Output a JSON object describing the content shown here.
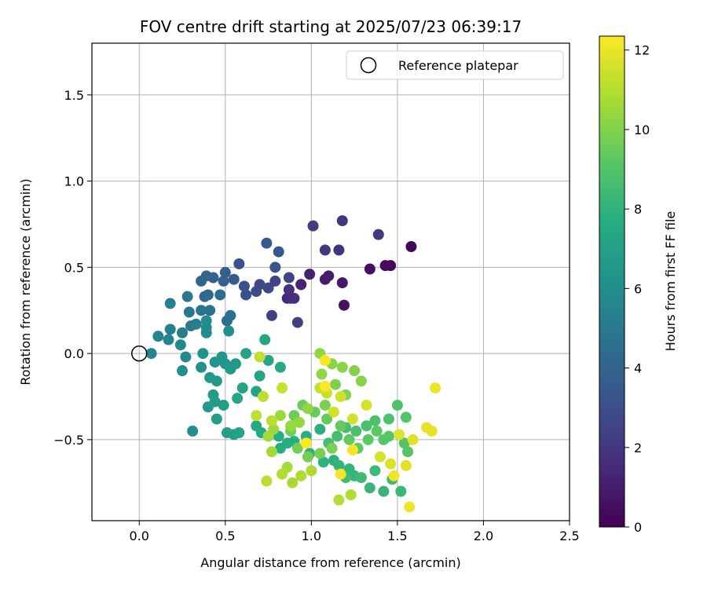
{
  "chart_data": {
    "type": "scatter",
    "title": "FOV centre drift starting at 2025/07/23 06:39:17",
    "xlabel": "Angular distance from reference (arcmin)",
    "ylabel": "Rotation from reference (arcmin)",
    "xlim": [
      -0.275,
      2.5
    ],
    "ylim": [
      -0.97,
      1.8
    ],
    "xticks": [
      0.0,
      0.5,
      1.0,
      1.5,
      2.0,
      2.5
    ],
    "xtick_labels": [
      "0.0",
      "0.5",
      "1.0",
      "1.5",
      "2.0",
      "2.5"
    ],
    "yticks": [
      -0.5,
      0.0,
      0.5,
      1.0,
      1.5
    ],
    "ytick_labels": [
      "−0.5",
      "0.0",
      "0.5",
      "1.0",
      "1.5"
    ],
    "grid": true,
    "legend": {
      "placement": "top-right",
      "entries": [
        "Reference platepar"
      ]
    },
    "reference_point": {
      "x": 0.0,
      "y": 0.0,
      "marker": "open-circle"
    },
    "colorbar": {
      "label": "Hours from first FF file",
      "colormap": "viridis",
      "range": [
        0,
        12.35
      ],
      "ticks": [
        0,
        2,
        4,
        6,
        8,
        10,
        12
      ],
      "tick_labels": [
        "0",
        "2",
        "4",
        "6",
        "8",
        "10",
        "12"
      ]
    },
    "points": [
      {
        "x": 1.58,
        "y": 0.62,
        "t": 0.2
      },
      {
        "x": 1.46,
        "y": 0.51,
        "t": 0.3
      },
      {
        "x": 1.43,
        "y": 0.51,
        "t": 0.4
      },
      {
        "x": 1.34,
        "y": 0.49,
        "t": 0.5
      },
      {
        "x": 1.19,
        "y": 0.28,
        "t": 0.6
      },
      {
        "x": 1.18,
        "y": 0.41,
        "t": 0.8
      },
      {
        "x": 1.08,
        "y": 0.43,
        "t": 0.9
      },
      {
        "x": 1.1,
        "y": 0.45,
        "t": 1.0
      },
      {
        "x": 0.99,
        "y": 0.46,
        "t": 1.1
      },
      {
        "x": 0.94,
        "y": 0.4,
        "t": 1.2
      },
      {
        "x": 0.94,
        "y": 0.4,
        "t": 1.3
      },
      {
        "x": 0.86,
        "y": 0.32,
        "t": 1.4
      },
      {
        "x": 0.88,
        "y": 0.32,
        "t": 1.5
      },
      {
        "x": 0.9,
        "y": 0.32,
        "t": 1.6
      },
      {
        "x": 0.87,
        "y": 0.37,
        "t": 1.7
      },
      {
        "x": 1.16,
        "y": 0.6,
        "t": 1.8
      },
      {
        "x": 1.08,
        "y": 0.6,
        "t": 1.9
      },
      {
        "x": 1.18,
        "y": 0.77,
        "t": 2.0
      },
      {
        "x": 1.39,
        "y": 0.69,
        "t": 2.1
      },
      {
        "x": 1.01,
        "y": 0.74,
        "t": 2.2
      },
      {
        "x": 0.92,
        "y": 0.18,
        "t": 2.3
      },
      {
        "x": 0.77,
        "y": 0.22,
        "t": 2.4
      },
      {
        "x": 0.87,
        "y": 0.44,
        "t": 2.5
      },
      {
        "x": 0.79,
        "y": 0.42,
        "t": 2.6
      },
      {
        "x": 0.75,
        "y": 0.38,
        "t": 2.7
      },
      {
        "x": 0.7,
        "y": 0.4,
        "t": 2.8
      },
      {
        "x": 0.68,
        "y": 0.36,
        "t": 2.9
      },
      {
        "x": 0.62,
        "y": 0.34,
        "t": 3.0
      },
      {
        "x": 0.61,
        "y": 0.39,
        "t": 3.1
      },
      {
        "x": 0.58,
        "y": 0.52,
        "t": 3.2
      },
      {
        "x": 0.79,
        "y": 0.5,
        "t": 3.3
      },
      {
        "x": 0.81,
        "y": 0.59,
        "t": 3.4
      },
      {
        "x": 0.74,
        "y": 0.64,
        "t": 3.5
      },
      {
        "x": 0.55,
        "y": 0.43,
        "t": 3.6
      },
      {
        "x": 0.5,
        "y": 0.47,
        "t": 3.7
      },
      {
        "x": 0.49,
        "y": 0.42,
        "t": 3.8
      },
      {
        "x": 0.43,
        "y": 0.44,
        "t": 3.9
      },
      {
        "x": 0.39,
        "y": 0.45,
        "t": 4.0
      },
      {
        "x": 0.36,
        "y": 0.42,
        "t": 4.1
      },
      {
        "x": 0.4,
        "y": 0.34,
        "t": 4.2
      },
      {
        "x": 0.38,
        "y": 0.33,
        "t": 4.3
      },
      {
        "x": 0.47,
        "y": 0.34,
        "t": 4.4
      },
      {
        "x": 0.51,
        "y": 0.19,
        "t": 4.5
      },
      {
        "x": 0.53,
        "y": 0.22,
        "t": 4.6
      },
      {
        "x": 0.41,
        "y": 0.25,
        "t": 4.7
      },
      {
        "x": 0.36,
        "y": 0.25,
        "t": 4.8
      },
      {
        "x": 0.29,
        "y": 0.24,
        "t": 4.9
      },
      {
        "x": 0.28,
        "y": 0.33,
        "t": 4.9
      },
      {
        "x": 0.3,
        "y": 0.16,
        "t": 5.0
      },
      {
        "x": 0.33,
        "y": 0.17,
        "t": 5.1
      },
      {
        "x": 0.25,
        "y": 0.12,
        "t": 5.2
      },
      {
        "x": 0.18,
        "y": 0.29,
        "t": 5.3
      },
      {
        "x": 0.18,
        "y": 0.14,
        "t": 5.4
      },
      {
        "x": 0.17,
        "y": 0.08,
        "t": 5.5
      },
      {
        "x": 0.11,
        "y": 0.1,
        "t": 5.6
      },
      {
        "x": 0.07,
        "y": 0.0,
        "t": 5.7
      },
      {
        "x": 0.24,
        "y": 0.05,
        "t": 5.8
      },
      {
        "x": 0.27,
        "y": -0.02,
        "t": 5.9
      },
      {
        "x": 0.39,
        "y": 0.19,
        "t": 5.95
      },
      {
        "x": 0.39,
        "y": 0.15,
        "t": 6.0
      },
      {
        "x": 0.39,
        "y": 0.12,
        "t": 6.05
      },
      {
        "x": 0.52,
        "y": 0.13,
        "t": 6.1
      },
      {
        "x": 0.31,
        "y": -0.45,
        "t": 6.15
      },
      {
        "x": 0.25,
        "y": -0.1,
        "t": 6.2
      },
      {
        "x": 0.36,
        "y": -0.08,
        "t": 6.25
      },
      {
        "x": 0.37,
        "y": 0.0,
        "t": 6.3
      },
      {
        "x": 0.44,
        "y": -0.05,
        "t": 6.35
      },
      {
        "x": 0.48,
        "y": -0.02,
        "t": 6.4
      },
      {
        "x": 0.5,
        "y": -0.06,
        "t": 6.45
      },
      {
        "x": 0.53,
        "y": -0.09,
        "t": 6.5
      },
      {
        "x": 0.56,
        "y": -0.06,
        "t": 6.55
      },
      {
        "x": 0.41,
        "y": -0.14,
        "t": 6.6
      },
      {
        "x": 0.45,
        "y": -0.16,
        "t": 6.65
      },
      {
        "x": 0.43,
        "y": -0.24,
        "t": 6.7
      },
      {
        "x": 0.4,
        "y": -0.31,
        "t": 6.75
      },
      {
        "x": 0.44,
        "y": -0.28,
        "t": 6.8
      },
      {
        "x": 0.49,
        "y": -0.3,
        "t": 6.85
      },
      {
        "x": 0.45,
        "y": -0.38,
        "t": 6.9
      },
      {
        "x": 0.51,
        "y": -0.46,
        "t": 6.95
      },
      {
        "x": 0.55,
        "y": -0.47,
        "t": 7.0
      },
      {
        "x": 0.58,
        "y": -0.46,
        "t": 7.05
      },
      {
        "x": 0.62,
        "y": 0.0,
        "t": 7.1
      },
      {
        "x": 0.7,
        "y": -0.13,
        "t": 7.15
      },
      {
        "x": 0.68,
        "y": -0.22,
        "t": 7.2
      },
      {
        "x": 0.6,
        "y": -0.2,
        "t": 7.25
      },
      {
        "x": 0.57,
        "y": -0.26,
        "t": 7.3
      },
      {
        "x": 0.73,
        "y": 0.08,
        "t": 7.35
      },
      {
        "x": 0.75,
        "y": -0.04,
        "t": 7.4
      },
      {
        "x": 0.82,
        "y": -0.08,
        "t": 7.45
      },
      {
        "x": 0.68,
        "y": -0.42,
        "t": 7.5
      },
      {
        "x": 0.71,
        "y": -0.46,
        "t": 7.55
      },
      {
        "x": 0.81,
        "y": -0.48,
        "t": 7.6
      },
      {
        "x": 0.86,
        "y": -0.52,
        "t": 7.65
      },
      {
        "x": 0.82,
        "y": -0.55,
        "t": 7.7
      },
      {
        "x": 0.9,
        "y": -0.51,
        "t": 7.75
      },
      {
        "x": 0.97,
        "y": -0.48,
        "t": 7.8
      },
      {
        "x": 1.05,
        "y": -0.44,
        "t": 7.85
      },
      {
        "x": 0.99,
        "y": -0.58,
        "t": 7.9
      },
      {
        "x": 1.07,
        "y": -0.63,
        "t": 7.95
      },
      {
        "x": 1.13,
        "y": -0.62,
        "t": 8.0
      },
      {
        "x": 1.16,
        "y": -0.65,
        "t": 8.05
      },
      {
        "x": 1.22,
        "y": -0.67,
        "t": 8.1
      },
      {
        "x": 1.25,
        "y": -0.71,
        "t": 8.15
      },
      {
        "x": 1.34,
        "y": -0.78,
        "t": 8.2
      },
      {
        "x": 1.42,
        "y": -0.8,
        "t": 8.25
      },
      {
        "x": 1.52,
        "y": -0.8,
        "t": 8.3
      },
      {
        "x": 1.47,
        "y": -0.73,
        "t": 8.35
      },
      {
        "x": 1.37,
        "y": -0.68,
        "t": 8.4
      },
      {
        "x": 1.29,
        "y": -0.72,
        "t": 8.45
      },
      {
        "x": 1.2,
        "y": -0.72,
        "t": 8.5
      },
      {
        "x": 1.1,
        "y": -0.52,
        "t": 8.55
      },
      {
        "x": 1.15,
        "y": -0.48,
        "t": 8.6
      },
      {
        "x": 1.2,
        "y": -0.43,
        "t": 8.65
      },
      {
        "x": 1.26,
        "y": -0.45,
        "t": 8.7
      },
      {
        "x": 1.32,
        "y": -0.42,
        "t": 8.75
      },
      {
        "x": 1.37,
        "y": -0.39,
        "t": 8.8
      },
      {
        "x": 1.45,
        "y": -0.38,
        "t": 8.85
      },
      {
        "x": 1.5,
        "y": -0.3,
        "t": 8.9
      },
      {
        "x": 1.55,
        "y": -0.37,
        "t": 8.95
      },
      {
        "x": 1.54,
        "y": -0.52,
        "t": 9.0
      },
      {
        "x": 1.56,
        "y": -0.57,
        "t": 9.05
      },
      {
        "x": 1.45,
        "y": -0.48,
        "t": 9.1
      },
      {
        "x": 1.42,
        "y": -0.5,
        "t": 9.15
      },
      {
        "x": 1.38,
        "y": -0.45,
        "t": 9.2
      },
      {
        "x": 1.33,
        "y": -0.5,
        "t": 9.25
      },
      {
        "x": 1.27,
        "y": -0.55,
        "t": 9.3
      },
      {
        "x": 1.22,
        "y": -0.5,
        "t": 9.35
      },
      {
        "x": 1.17,
        "y": -0.42,
        "t": 9.4
      },
      {
        "x": 1.09,
        "y": -0.38,
        "t": 9.45
      },
      {
        "x": 1.02,
        "y": -0.34,
        "t": 9.5
      },
      {
        "x": 0.95,
        "y": -0.3,
        "t": 9.55
      },
      {
        "x": 0.9,
        "y": -0.36,
        "t": 9.6
      },
      {
        "x": 0.88,
        "y": -0.45,
        "t": 9.65
      },
      {
        "x": 0.92,
        "y": -0.55,
        "t": 9.7
      },
      {
        "x": 0.98,
        "y": -0.6,
        "t": 9.75
      },
      {
        "x": 1.05,
        "y": -0.58,
        "t": 9.8
      },
      {
        "x": 1.12,
        "y": -0.55,
        "t": 9.85
      },
      {
        "x": 1.08,
        "y": -0.3,
        "t": 9.9
      },
      {
        "x": 1.14,
        "y": -0.18,
        "t": 9.95
      },
      {
        "x": 1.2,
        "y": -0.24,
        "t": 10.0
      },
      {
        "x": 1.25,
        "y": -0.1,
        "t": 10.05
      },
      {
        "x": 1.29,
        "y": -0.16,
        "t": 10.1
      },
      {
        "x": 1.18,
        "y": -0.08,
        "t": 10.15
      },
      {
        "x": 1.12,
        "y": -0.06,
        "t": 10.2
      },
      {
        "x": 1.06,
        "y": -0.12,
        "t": 10.25
      },
      {
        "x": 1.05,
        "y": 0.0,
        "t": 10.3
      },
      {
        "x": 0.98,
        "y": -0.32,
        "t": 10.35
      },
      {
        "x": 0.93,
        "y": -0.4,
        "t": 10.4
      },
      {
        "x": 0.88,
        "y": -0.42,
        "t": 10.45
      },
      {
        "x": 0.82,
        "y": -0.36,
        "t": 10.5
      },
      {
        "x": 0.78,
        "y": -0.44,
        "t": 10.55
      },
      {
        "x": 0.75,
        "y": -0.48,
        "t": 10.6
      },
      {
        "x": 0.77,
        "y": -0.57,
        "t": 10.65
      },
      {
        "x": 0.86,
        "y": -0.66,
        "t": 10.7
      },
      {
        "x": 0.89,
        "y": -0.75,
        "t": 10.75
      },
      {
        "x": 0.94,
        "y": -0.71,
        "t": 10.8
      },
      {
        "x": 1.0,
        "y": -0.68,
        "t": 10.85
      },
      {
        "x": 1.23,
        "y": -0.82,
        "t": 10.9
      },
      {
        "x": 1.16,
        "y": -0.85,
        "t": 10.95
      },
      {
        "x": 0.83,
        "y": -0.7,
        "t": 11.0
      },
      {
        "x": 0.74,
        "y": -0.74,
        "t": 11.05
      },
      {
        "x": 0.77,
        "y": -0.39,
        "t": 11.1
      },
      {
        "x": 0.72,
        "y": -0.25,
        "t": 11.15
      },
      {
        "x": 0.68,
        "y": -0.36,
        "t": 11.2
      },
      {
        "x": 0.7,
        "y": -0.02,
        "t": 11.25
      },
      {
        "x": 0.83,
        "y": -0.2,
        "t": 11.3
      },
      {
        "x": 1.05,
        "y": -0.2,
        "t": 11.35
      },
      {
        "x": 1.09,
        "y": -0.23,
        "t": 11.4
      },
      {
        "x": 1.13,
        "y": -0.34,
        "t": 11.45
      },
      {
        "x": 1.17,
        "y": -0.25,
        "t": 11.5
      },
      {
        "x": 1.24,
        "y": -0.38,
        "t": 11.55
      },
      {
        "x": 1.32,
        "y": -0.3,
        "t": 11.6
      },
      {
        "x": 1.4,
        "y": -0.6,
        "t": 11.65
      },
      {
        "x": 1.46,
        "y": -0.64,
        "t": 11.7
      },
      {
        "x": 1.51,
        "y": -0.47,
        "t": 11.75
      },
      {
        "x": 1.55,
        "y": -0.65,
        "t": 11.8
      },
      {
        "x": 1.59,
        "y": -0.5,
        "t": 11.85
      },
      {
        "x": 1.67,
        "y": -0.43,
        "t": 11.9
      },
      {
        "x": 1.7,
        "y": -0.45,
        "t": 11.95
      },
      {
        "x": 1.72,
        "y": -0.2,
        "t": 12.0
      },
      {
        "x": 1.57,
        "y": -0.89,
        "t": 12.05
      },
      {
        "x": 1.48,
        "y": -0.71,
        "t": 12.1
      },
      {
        "x": 1.24,
        "y": -0.56,
        "t": 12.15
      },
      {
        "x": 1.17,
        "y": -0.7,
        "t": 12.2
      },
      {
        "x": 1.08,
        "y": -0.04,
        "t": 12.25
      },
      {
        "x": 1.08,
        "y": -0.19,
        "t": 12.3
      },
      {
        "x": 0.97,
        "y": -0.52,
        "t": 12.35
      }
    ]
  }
}
